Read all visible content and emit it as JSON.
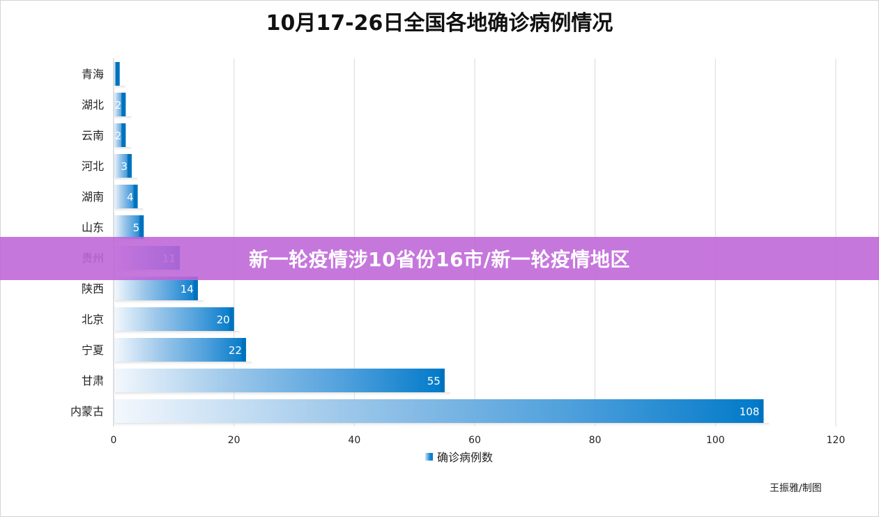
{
  "title": "10月17-26日全国各地确诊病例情况",
  "credit": "王振雅/制图",
  "banner": "新一轮疫情涉10省份16市/新一轮疫情地区",
  "colors": {
    "bar": "#0a86d0",
    "bar_light": "#e8f2fb",
    "grid": "#d9d9d9"
  },
  "chart_data": {
    "type": "bar",
    "orientation": "horizontal",
    "title": "10月17-26日全国各地确诊病例情况",
    "categories": [
      "青海",
      "湖北",
      "云南",
      "河北",
      "湖南",
      "山东",
      "贵州",
      "陕西",
      "北京",
      "宁夏",
      "甘肃",
      "内蒙古"
    ],
    "series": [
      {
        "name": "确诊病例数",
        "values": [
          1,
          2,
          2,
          3,
          4,
          5,
          11,
          14,
          20,
          22,
          55,
          108
        ]
      }
    ],
    "xlim": [
      0,
      120
    ],
    "xticks": [
      "0",
      "20",
      "40",
      "60",
      "80",
      "100",
      "120"
    ],
    "grid": true,
    "legend_position": "bottom"
  }
}
